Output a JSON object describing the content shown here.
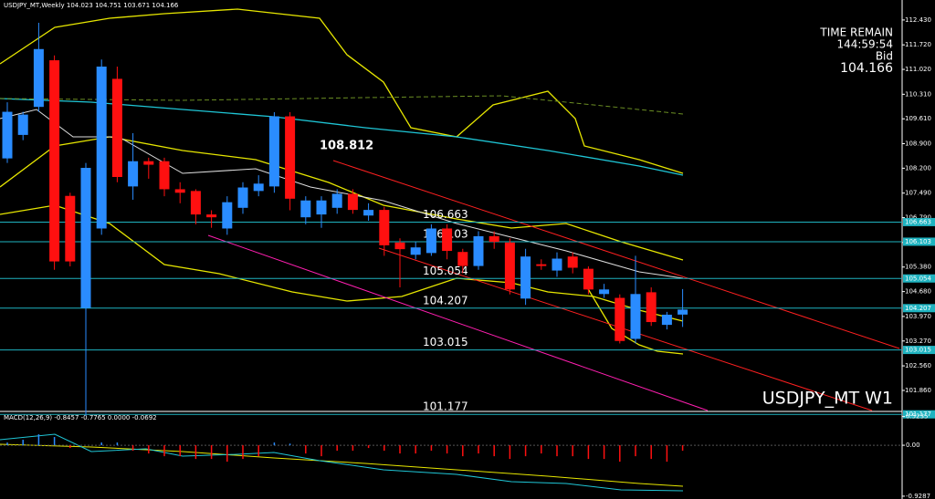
{
  "chart_data": {
    "type": "candlestick",
    "title": "USDJPY_MT,Weekly  104.023 104.751 103.671 104.166",
    "symbol_label": "USDJPY_MT W1",
    "annotation": "108.812",
    "info": {
      "time_label": "TIME REMAIN",
      "time": "144:59:54",
      "bid_label": "Bid",
      "bid": "104.166"
    },
    "up_color": "#2a8cff",
    "down_color": "#ff1010",
    "level_color": "#1fb3c0",
    "open": [
      108.48,
      109.15,
      109.95,
      111.28,
      107.41,
      104.21,
      106.48,
      110.75,
      107.68,
      108.4,
      108.4,
      107.6,
      107.55,
      106.88,
      106.48,
      107.07,
      107.55,
      107.68,
      109.68,
      106.8,
      106.88,
      107.07,
      107.47,
      106.85,
      107.01,
      106.08,
      105.73,
      105.78,
      106.48,
      105.81,
      105.41,
      106.26,
      106.08,
      104.48,
      105.46,
      105.28,
      105.68,
      105.33,
      104.61,
      104.5,
      103.33,
      104.66,
      103.73,
      104.023
    ],
    "high": [
      110.08,
      109.81,
      112.35,
      111.42,
      107.5,
      108.35,
      111.3,
      111.1,
      109.2,
      108.5,
      108.5,
      107.8,
      107.6,
      107.0,
      107.4,
      107.8,
      108.0,
      109.8,
      109.8,
      107.4,
      107.4,
      107.6,
      107.6,
      107.2,
      107.1,
      106.2,
      106.1,
      106.6,
      106.6,
      105.9,
      106.4,
      106.4,
      106.2,
      105.9,
      105.6,
      105.8,
      105.8,
      105.4,
      104.9,
      104.6,
      105.7,
      104.8,
      104.1,
      104.751
    ],
    "low": [
      108.35,
      109.0,
      109.81,
      105.3,
      105.4,
      101.14,
      106.3,
      107.8,
      107.3,
      107.9,
      107.4,
      107.2,
      106.6,
      106.5,
      106.3,
      106.9,
      107.4,
      107.5,
      107.0,
      106.6,
      106.5,
      106.9,
      106.9,
      106.7,
      105.7,
      104.8,
      105.6,
      105.7,
      105.6,
      105.2,
      105.3,
      105.9,
      104.6,
      104.3,
      105.3,
      105.1,
      105.2,
      104.6,
      104.5,
      103.2,
      103.2,
      103.7,
      103.6,
      103.671
    ],
    "close": [
      109.81,
      109.73,
      111.6,
      105.54,
      105.54,
      108.21,
      111.1,
      107.95,
      108.4,
      108.3,
      107.6,
      107.5,
      106.88,
      106.8,
      107.23,
      107.65,
      107.76,
      109.68,
      107.33,
      107.28,
      107.28,
      107.47,
      107.01,
      107.01,
      106.0,
      105.89,
      105.94,
      106.48,
      105.84,
      105.41,
      106.26,
      106.1,
      104.74,
      105.68,
      105.41,
      105.62,
      105.36,
      104.74,
      104.74,
      103.27,
      104.61,
      103.81,
      104.02,
      104.166
    ],
    "ylim": [
      101.26,
      113.0
    ],
    "yticks": [
      {
        "value": 112.43,
        "label": "112.430"
      },
      {
        "value": 111.72,
        "label": "111.720"
      },
      {
        "value": 111.02,
        "label": "111.020"
      },
      {
        "value": 110.31,
        "label": "110.310"
      },
      {
        "value": 109.61,
        "label": "109.610"
      },
      {
        "value": 108.9,
        "label": "108.900"
      },
      {
        "value": 108.2,
        "label": "108.200"
      },
      {
        "value": 107.49,
        "label": "107.490"
      },
      {
        "value": 106.79,
        "label": "106.790"
      },
      {
        "value": 106.08,
        "label": "106.080"
      },
      {
        "value": 105.38,
        "label": "105.380"
      },
      {
        "value": 104.68,
        "label": "104.680"
      },
      {
        "value": 103.97,
        "label": "103.970"
      },
      {
        "value": 103.27,
        "label": "103.270"
      },
      {
        "value": 102.56,
        "label": "102.560"
      },
      {
        "value": 101.86,
        "label": "101.860"
      }
    ],
    "levels": [
      106.663,
      106.103,
      105.054,
      104.207,
      103.015,
      101.177
    ],
    "macd": {
      "title": "MACD(12,26,9) -0.8457 -0.7765 0.0000 -0.0692",
      "ylim": [
        -0.98,
        0.6
      ],
      "yticks": [
        0.5235,
        {
          "value": 0,
          "label": "0.00"
        },
        -0.9287
      ],
      "values": [
        0.05,
        0.1,
        0.2,
        0.15,
        -0.05,
        0,
        0.05,
        0.05,
        -0.1,
        -0.15,
        -0.2,
        -0.2,
        -0.25,
        -0.25,
        -0.3,
        -0.25,
        -0.2,
        0.05,
        0.03,
        -0.15,
        -0.2,
        -0.1,
        -0.1,
        -0.05,
        -0.1,
        -0.15,
        -0.15,
        -0.1,
        -0.15,
        -0.2,
        -0.15,
        -0.2,
        -0.25,
        -0.2,
        -0.15,
        -0.2,
        -0.2,
        -0.25,
        -0.25,
        -0.3,
        -0.2,
        -0.25,
        -0.3,
        -0.1
      ]
    }
  }
}
